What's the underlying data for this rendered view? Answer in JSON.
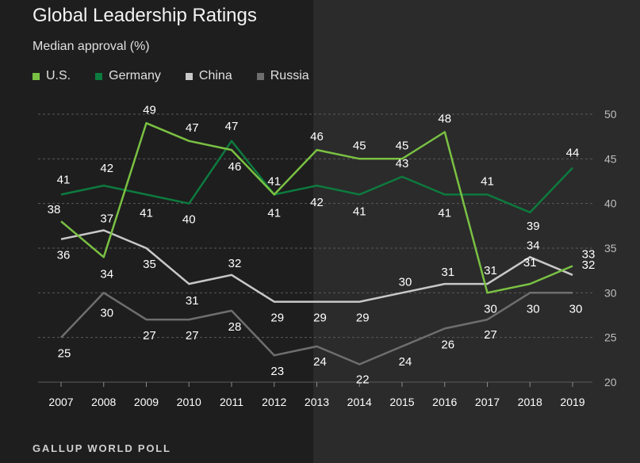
{
  "title": "Global Leadership Ratings",
  "subtitle": "Median approval (%)",
  "footer": "GALLUP WORLD POLL",
  "chart_data": {
    "type": "line",
    "title": "Global Leadership Ratings",
    "subtitle": "Median approval (%)",
    "x": [
      "2007",
      "2008",
      "2009",
      "2010",
      "2011",
      "2012",
      "2013",
      "2014",
      "2015",
      "2016",
      "2017",
      "2018",
      "2019"
    ],
    "ylim": [
      20,
      50
    ],
    "yticks": [
      20,
      25,
      30,
      35,
      40,
      45,
      50
    ],
    "grid": true,
    "legend_position": "top-left",
    "series": [
      {
        "name": "U.S.",
        "color": "#7ac143",
        "values": [
          38,
          34,
          49,
          47,
          46,
          41,
          46,
          45,
          45,
          48,
          30,
          31,
          33
        ]
      },
      {
        "name": "Germany",
        "color": "#0d7a3e",
        "values": [
          41,
          42,
          41,
          40,
          47,
          41,
          42,
          41,
          43,
          41,
          41,
          39,
          44
        ]
      },
      {
        "name": "China",
        "color": "#c8c8c8",
        "values": [
          36,
          37,
          35,
          31,
          32,
          29,
          29,
          29,
          30,
          31,
          31,
          34,
          32
        ]
      },
      {
        "name": "Russia",
        "color": "#6e6e6e",
        "values": [
          25,
          30,
          27,
          27,
          28,
          23,
          24,
          22,
          24,
          26,
          27,
          30,
          30
        ]
      }
    ],
    "labels": [
      {
        "series": 0,
        "i": 0,
        "text": "38"
      },
      {
        "series": 0,
        "i": 1,
        "text": "34"
      },
      {
        "series": 0,
        "i": 2,
        "text": "49"
      },
      {
        "series": 0,
        "i": 3,
        "text": "47"
      },
      {
        "series": 0,
        "i": 4,
        "text": "46"
      },
      {
        "series": 0,
        "i": 5,
        "text": "41"
      },
      {
        "series": 0,
        "i": 6,
        "text": "46"
      },
      {
        "series": 0,
        "i": 7,
        "text": "45"
      },
      {
        "series": 0,
        "i": 8,
        "text": "45"
      },
      {
        "series": 0,
        "i": 9,
        "text": "48"
      },
      {
        "series": 0,
        "i": 10,
        "text": "30"
      },
      {
        "series": 0,
        "i": 11,
        "text": "31"
      },
      {
        "series": 0,
        "i": 12,
        "text": "33"
      },
      {
        "series": 1,
        "i": 0,
        "text": "41"
      },
      {
        "series": 1,
        "i": 1,
        "text": "42"
      },
      {
        "series": 1,
        "i": 2,
        "text": "41"
      },
      {
        "series": 1,
        "i": 3,
        "text": "40"
      },
      {
        "series": 1,
        "i": 4,
        "text": "47"
      },
      {
        "series": 1,
        "i": 5,
        "text": "41"
      },
      {
        "series": 1,
        "i": 6,
        "text": "42"
      },
      {
        "series": 1,
        "i": 7,
        "text": "41"
      },
      {
        "series": 1,
        "i": 8,
        "text": "43"
      },
      {
        "series": 1,
        "i": 9,
        "text": "41"
      },
      {
        "series": 1,
        "i": 10,
        "text": "41"
      },
      {
        "series": 1,
        "i": 11,
        "text": "39"
      },
      {
        "series": 1,
        "i": 12,
        "text": "44"
      },
      {
        "series": 2,
        "i": 0,
        "text": "36"
      },
      {
        "series": 2,
        "i": 1,
        "text": "37"
      },
      {
        "series": 2,
        "i": 2,
        "text": "35"
      },
      {
        "series": 2,
        "i": 3,
        "text": "31"
      },
      {
        "series": 2,
        "i": 4,
        "text": "32"
      },
      {
        "series": 2,
        "i": 5,
        "text": "29"
      },
      {
        "series": 2,
        "i": 6,
        "text": "29"
      },
      {
        "series": 2,
        "i": 7,
        "text": "29"
      },
      {
        "series": 2,
        "i": 8,
        "text": "30"
      },
      {
        "series": 2,
        "i": 9,
        "text": "31"
      },
      {
        "series": 2,
        "i": 10,
        "text": "31"
      },
      {
        "series": 2,
        "i": 11,
        "text": "34"
      },
      {
        "series": 2,
        "i": 12,
        "text": "32"
      },
      {
        "series": 3,
        "i": 0,
        "text": "25"
      },
      {
        "series": 3,
        "i": 1,
        "text": "30"
      },
      {
        "series": 3,
        "i": 2,
        "text": "27"
      },
      {
        "series": 3,
        "i": 3,
        "text": "27"
      },
      {
        "series": 3,
        "i": 4,
        "text": "28"
      },
      {
        "series": 3,
        "i": 5,
        "text": "23"
      },
      {
        "series": 3,
        "i": 6,
        "text": "24"
      },
      {
        "series": 3,
        "i": 7,
        "text": "22"
      },
      {
        "series": 3,
        "i": 8,
        "text": "24"
      },
      {
        "series": 3,
        "i": 9,
        "text": "26"
      },
      {
        "series": 3,
        "i": 10,
        "text": "27"
      },
      {
        "series": 3,
        "i": 11,
        "text": "30"
      },
      {
        "series": 3,
        "i": 12,
        "text": "30"
      }
    ]
  }
}
